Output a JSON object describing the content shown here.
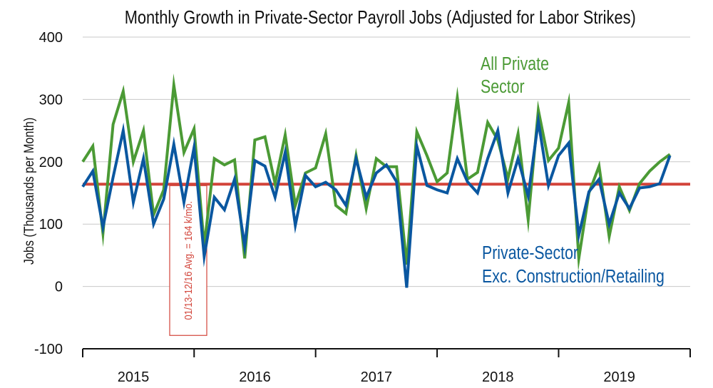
{
  "chart_data": {
    "type": "line",
    "title": "Monthly Growth in Private-Sector Payroll Jobs (Adjusted for Labor Strikes)",
    "ylabel": "Jobs (Thousands per Month)",
    "xlabel": "",
    "ylim": [
      -100,
      400
    ],
    "yticks": [
      400,
      300,
      200,
      100,
      0,
      -100
    ],
    "xlim": [
      2014.583,
      2019.583
    ],
    "year_labels": [
      {
        "label": "2015",
        "x": 2015.0
      },
      {
        "label": "2016",
        "x": 2016.0
      },
      {
        "label": "2017",
        "x": 2017.0
      },
      {
        "label": "2018",
        "x": 2018.0
      },
      {
        "label": "2019",
        "x": 2019.0
      }
    ],
    "year_boundaries": [
      2015.5,
      2016.5,
      2017.5,
      2018.5
    ],
    "grid": true,
    "series": [
      {
        "name": "All Private Sector",
        "label_lines": [
          "All Private",
          "Sector"
        ],
        "color": "#4b9a35",
        "x0": 2014.583,
        "dx": 0.08333,
        "values": [
          200,
          225,
          85,
          260,
          313,
          200,
          250,
          115,
          155,
          323,
          215,
          253,
          65,
          205,
          195,
          203,
          45,
          235,
          240,
          165,
          243,
          130,
          182,
          190,
          245,
          130,
          117,
          210,
          125,
          205,
          192,
          192,
          35,
          248,
          210,
          168,
          182,
          303,
          172,
          183,
          263,
          235,
          173,
          245,
          107,
          283,
          202,
          222,
          295,
          45,
          150,
          193,
          80,
          160,
          122,
          165,
          185,
          200,
          212
        ]
      },
      {
        "name": "Private-Sector Exc. Construction/Retailing",
        "label_lines": [
          "Private-Sector",
          "Exc. Construction/Retailing"
        ],
        "color": "#0a57a0",
        "x0": 2014.583,
        "dx": 0.08333,
        "values": [
          160,
          185,
          95,
          175,
          250,
          135,
          205,
          100,
          140,
          228,
          135,
          223,
          48,
          143,
          123,
          172,
          65,
          202,
          193,
          143,
          215,
          98,
          178,
          160,
          167,
          155,
          130,
          205,
          143,
          182,
          195,
          168,
          -2,
          225,
          162,
          155,
          150,
          205,
          168,
          150,
          205,
          250,
          150,
          205,
          145,
          265,
          162,
          210,
          230,
          82,
          152,
          172,
          100,
          150,
          125,
          158,
          160,
          165,
          210
        ]
      }
    ],
    "reference": {
      "value": 164,
      "label": "01/13-12/16 Avg. = 164 k/mo.",
      "color": "#d2443a"
    }
  }
}
